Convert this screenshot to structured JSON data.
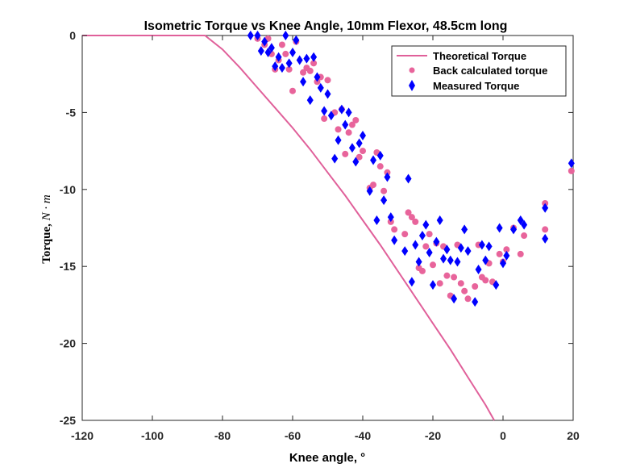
{
  "chart_data": {
    "type": "scatter",
    "title": "Isometric Torque vs Knee Angle, 10mm Flexor, 48.5cm long",
    "xlabel": "Knee angle, °",
    "ylabel": {
      "text": "Torque,",
      "unit": "N · m"
    },
    "xlim": [
      -120,
      20
    ],
    "ylim": [
      -25,
      0
    ],
    "xticks": [
      "-120",
      "-100",
      "-80",
      "-60",
      "-40",
      "-20",
      "0",
      "20"
    ],
    "yticks": [
      "0",
      "-5",
      "-10",
      "-15",
      "-20",
      "-25"
    ],
    "grid": false,
    "legend_position": "top-right",
    "colors": {
      "theoretical": "#e0609a",
      "back_calculated": "#e8649b",
      "measured": "#0000ff"
    },
    "series": [
      {
        "name": "Theoretical Torque",
        "style": "line",
        "points": [
          [
            -120,
            0
          ],
          [
            -85,
            0
          ],
          [
            -80,
            -0.9
          ],
          [
            -75,
            -2.1
          ],
          [
            -70,
            -3.4
          ],
          [
            -65,
            -4.7
          ],
          [
            -60,
            -6.0
          ],
          [
            -55,
            -7.4
          ],
          [
            -50,
            -8.9
          ],
          [
            -45,
            -10.4
          ],
          [
            -40,
            -12.0
          ],
          [
            -35,
            -13.6
          ],
          [
            -30,
            -15.3
          ],
          [
            -25,
            -17.0
          ],
          [
            -20,
            -18.7
          ],
          [
            -15,
            -20.4
          ],
          [
            -10,
            -22.2
          ],
          [
            -5,
            -24.0
          ],
          [
            -2.5,
            -25
          ]
        ]
      },
      {
        "name": "Back calculated torque",
        "style": "dots",
        "points": [
          [
            -70,
            -0.2
          ],
          [
            -68,
            -0.6
          ],
          [
            -67,
            -0.2
          ],
          [
            -66,
            -1.2
          ],
          [
            -65,
            -2.2
          ],
          [
            -64,
            -1.6
          ],
          [
            -63,
            -0.6
          ],
          [
            -62,
            -1.2
          ],
          [
            -61,
            -2.2
          ],
          [
            -60,
            -3.6
          ],
          [
            -59,
            -0.4
          ],
          [
            -57,
            -2.4
          ],
          [
            -56,
            -2.1
          ],
          [
            -55,
            -2.3
          ],
          [
            -54,
            -1.8
          ],
          [
            -53,
            -3.0
          ],
          [
            -52,
            -2.7
          ],
          [
            -51,
            -5.4
          ],
          [
            -50,
            -2.9
          ],
          [
            -48,
            -5.0
          ],
          [
            -47,
            -6.1
          ],
          [
            -46,
            -4.8
          ],
          [
            -45,
            -7.7
          ],
          [
            -44,
            -6.3
          ],
          [
            -43,
            -5.8
          ],
          [
            -42,
            -5.5
          ],
          [
            -41,
            -7.9
          ],
          [
            -40,
            -7.5
          ],
          [
            -38,
            -9.9
          ],
          [
            -37,
            -9.7
          ],
          [
            -36,
            -7.6
          ],
          [
            -35,
            -8.5
          ],
          [
            -34,
            -10.1
          ],
          [
            -33,
            -8.9
          ],
          [
            -32,
            -12.1
          ],
          [
            -31,
            -12.6
          ],
          [
            -28,
            -12.9
          ],
          [
            -27,
            -11.5
          ],
          [
            -26,
            -11.8
          ],
          [
            -25,
            -12.1
          ],
          [
            -24,
            -15.1
          ],
          [
            -23,
            -15.3
          ],
          [
            -22,
            -13.7
          ],
          [
            -21,
            -12.9
          ],
          [
            -20,
            -14.9
          ],
          [
            -19,
            -13.5
          ],
          [
            -18,
            -16.1
          ],
          [
            -17,
            -13.7
          ],
          [
            -16,
            -15.6
          ],
          [
            -15,
            -16.9
          ],
          [
            -14,
            -15.7
          ],
          [
            -13,
            -13.6
          ],
          [
            -12,
            -16.1
          ],
          [
            -11,
            -16.6
          ],
          [
            -10,
            -17.1
          ],
          [
            -8,
            -16.3
          ],
          [
            -7,
            -13.6
          ],
          [
            -6,
            -15.7
          ],
          [
            -5,
            -15.9
          ],
          [
            -4,
            -14.8
          ],
          [
            -3,
            -16.0
          ],
          [
            -1,
            -14.2
          ],
          [
            0,
            -14.7
          ],
          [
            1,
            -13.9
          ],
          [
            3,
            -12.5
          ],
          [
            5,
            -14.2
          ],
          [
            6,
            -13.0
          ],
          [
            12,
            -12.6
          ],
          [
            12,
            -10.9
          ],
          [
            19.5,
            -8.8
          ]
        ]
      },
      {
        "name": "Measured Torque",
        "style": "diamonds",
        "points": [
          [
            -72,
            0
          ],
          [
            -70,
            0
          ],
          [
            -69,
            -1.0
          ],
          [
            -68,
            -0.4
          ],
          [
            -67,
            -1.1
          ],
          [
            -66,
            -0.8
          ],
          [
            -65,
            -2.0
          ],
          [
            -64,
            -1.4
          ],
          [
            -63,
            -2.1
          ],
          [
            -62,
            0
          ],
          [
            -61,
            -1.8
          ],
          [
            -60,
            -1.1
          ],
          [
            -59,
            -0.3
          ],
          [
            -58,
            -1.6
          ],
          [
            -57,
            -3.0
          ],
          [
            -56,
            -1.5
          ],
          [
            -55,
            -4.2
          ],
          [
            -54,
            -1.4
          ],
          [
            -53,
            -2.7
          ],
          [
            -52,
            -3.4
          ],
          [
            -51,
            -4.9
          ],
          [
            -50,
            -3.8
          ],
          [
            -49,
            -5.2
          ],
          [
            -48,
            -8.0
          ],
          [
            -47,
            -6.8
          ],
          [
            -46,
            -4.8
          ],
          [
            -45,
            -5.8
          ],
          [
            -44,
            -5.0
          ],
          [
            -43,
            -7.3
          ],
          [
            -42,
            -8.2
          ],
          [
            -41,
            -7.0
          ],
          [
            -40,
            -6.5
          ],
          [
            -38,
            -10.1
          ],
          [
            -37,
            -8.1
          ],
          [
            -36,
            -12.0
          ],
          [
            -35,
            -7.8
          ],
          [
            -34,
            -10.7
          ],
          [
            -33,
            -9.2
          ],
          [
            -32,
            -11.8
          ],
          [
            -31,
            -13.3
          ],
          [
            -28,
            -14.0
          ],
          [
            -27,
            -9.3
          ],
          [
            -26,
            -16.0
          ],
          [
            -25,
            -13.6
          ],
          [
            -24,
            -14.7
          ],
          [
            -23,
            -13.0
          ],
          [
            -22,
            -12.3
          ],
          [
            -21,
            -14.1
          ],
          [
            -20,
            -16.2
          ],
          [
            -19,
            -13.4
          ],
          [
            -18,
            -12.0
          ],
          [
            -17,
            -14.5
          ],
          [
            -16,
            -13.9
          ],
          [
            -15,
            -14.6
          ],
          [
            -14,
            -17.1
          ],
          [
            -13,
            -14.7
          ],
          [
            -12,
            -13.8
          ],
          [
            -11,
            -12.6
          ],
          [
            -10,
            -14.0
          ],
          [
            -8,
            -17.3
          ],
          [
            -7,
            -15.2
          ],
          [
            -6,
            -13.6
          ],
          [
            -5,
            -14.6
          ],
          [
            -4,
            -13.7
          ],
          [
            -2,
            -16.2
          ],
          [
            -1,
            -12.5
          ],
          [
            0,
            -14.8
          ],
          [
            1,
            -14.3
          ],
          [
            3,
            -12.6
          ],
          [
            5,
            -12.0
          ],
          [
            6,
            -12.3
          ],
          [
            12,
            -11.2
          ],
          [
            12,
            -13.2
          ],
          [
            19.5,
            -8.3
          ]
        ]
      }
    ]
  }
}
